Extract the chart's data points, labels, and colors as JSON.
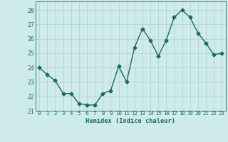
{
  "x": [
    0,
    1,
    2,
    3,
    4,
    5,
    6,
    7,
    8,
    9,
    10,
    11,
    12,
    13,
    14,
    15,
    16,
    17,
    18,
    19,
    20,
    21,
    22,
    23
  ],
  "y": [
    24.0,
    23.5,
    23.1,
    22.2,
    22.2,
    21.5,
    21.4,
    21.4,
    22.2,
    22.4,
    24.1,
    23.0,
    25.4,
    26.7,
    25.9,
    24.8,
    25.9,
    27.5,
    28.0,
    27.5,
    26.4,
    25.7,
    24.9,
    25.0
  ],
  "xlabel": "Humidex (Indice chaleur)",
  "xlim": [
    -0.5,
    23.5
  ],
  "ylim": [
    21.0,
    28.6
  ],
  "yticks": [
    21,
    22,
    23,
    24,
    25,
    26,
    27,
    28
  ],
  "xticks": [
    0,
    1,
    2,
    3,
    4,
    5,
    6,
    7,
    8,
    9,
    10,
    11,
    12,
    13,
    14,
    15,
    16,
    17,
    18,
    19,
    20,
    21,
    22,
    23
  ],
  "line_color": "#1a6b5a",
  "marker": "D",
  "marker_size": 2.5,
  "bg_color": "#ceeaea",
  "grid_color": "#b0d4d4",
  "tick_color": "#1a6b5a",
  "label_color": "#1a6b5a",
  "line_width": 1.0
}
